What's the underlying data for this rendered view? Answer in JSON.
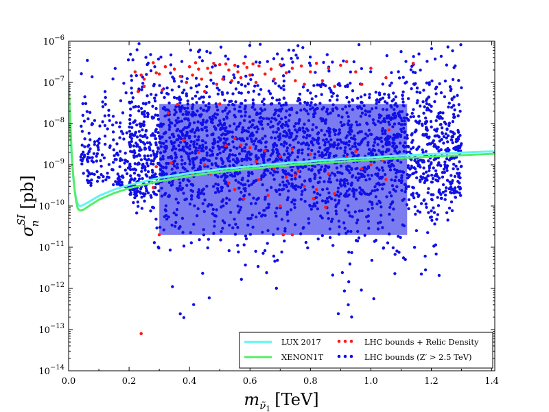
{
  "chart_data": {
    "type": "scatter",
    "title": "",
    "xlabel": {
      "prefix": "m",
      "subscript": "ν̃",
      "subsubscript": "1",
      "unit": "[TeV]"
    },
    "ylabel": {
      "base": "σ",
      "superscript": "SI",
      "subscript": "n",
      "unit": "[pb]"
    },
    "xscale": "linear",
    "yscale": "log",
    "xlim": [
      0.0,
      1.41
    ],
    "ylim": [
      1e-14,
      1e-06
    ],
    "xticks": [
      {
        "value": 0.0,
        "label": "0.0"
      },
      {
        "value": 0.2,
        "label": "0.2"
      },
      {
        "value": 0.4,
        "label": "0.4"
      },
      {
        "value": 0.6,
        "label": "0.6"
      },
      {
        "value": 0.8,
        "label": "0.8"
      },
      {
        "value": 1.0,
        "label": "1.0"
      },
      {
        "value": 1.2,
        "label": "1.2"
      },
      {
        "value": 1.4,
        "label": "1.4"
      }
    ],
    "yticks": [
      {
        "exp": -14,
        "base": "10",
        "sup": "−14"
      },
      {
        "exp": -13,
        "base": "10",
        "sup": "−13"
      },
      {
        "exp": -12,
        "base": "10",
        "sup": "−12"
      },
      {
        "exp": -11,
        "base": "10",
        "sup": "−11"
      },
      {
        "exp": -10,
        "base": "10",
        "sup": "−10"
      },
      {
        "exp": -9,
        "base": "10",
        "sup": "−9"
      },
      {
        "exp": -8,
        "base": "10",
        "sup": "−8"
      },
      {
        "exp": -7,
        "base": "10",
        "sup": "−7"
      },
      {
        "exp": -6,
        "base": "10",
        "sup": "−6"
      }
    ],
    "grid": false,
    "legend_position": "bottom-right",
    "series": [
      {
        "name": "LUX 2017",
        "kind": "line",
        "color": "#5ff5f2",
        "points": [
          [
            0.0,
            5e-08
          ],
          [
            0.005,
            8e-09
          ],
          [
            0.01,
            1.5e-09
          ],
          [
            0.015,
            5e-10
          ],
          [
            0.02,
            2.4e-10
          ],
          [
            0.025,
            1.5e-10
          ],
          [
            0.03,
            1.15e-10
          ],
          [
            0.035,
            1.02e-10
          ],
          [
            0.04,
            1e-10
          ],
          [
            0.05,
            1.07e-10
          ],
          [
            0.07,
            1.3e-10
          ],
          [
            0.1,
            1.75e-10
          ],
          [
            0.15,
            2.5e-10
          ],
          [
            0.2,
            3.25e-10
          ],
          [
            0.3,
            4.8e-10
          ],
          [
            0.4,
            6.3e-10
          ],
          [
            0.5,
            7.8e-10
          ],
          [
            0.6,
            9.2e-10
          ],
          [
            0.7,
            1.07e-09
          ],
          [
            0.8,
            1.22e-09
          ],
          [
            0.9,
            1.37e-09
          ],
          [
            1.0,
            1.52e-09
          ],
          [
            1.1,
            1.67e-09
          ],
          [
            1.2,
            1.82e-09
          ],
          [
            1.3,
            1.97e-09
          ],
          [
            1.41,
            2.12e-09
          ]
        ]
      },
      {
        "name": "XENON1T",
        "kind": "line",
        "color": "#55ee66",
        "points": [
          [
            0.0,
            1e-07
          ],
          [
            0.005,
            1.5e-08
          ],
          [
            0.01,
            2e-09
          ],
          [
            0.015,
            6e-10
          ],
          [
            0.02,
            2.4e-10
          ],
          [
            0.025,
            1.3e-10
          ],
          [
            0.03,
            8.8e-11
          ],
          [
            0.035,
            8e-11
          ],
          [
            0.04,
            7.8e-11
          ],
          [
            0.05,
            8.2e-11
          ],
          [
            0.07,
            1.03e-10
          ],
          [
            0.1,
            1.42e-10
          ],
          [
            0.15,
            2.05e-10
          ],
          [
            0.2,
            2.7e-10
          ],
          [
            0.3,
            4e-10
          ],
          [
            0.4,
            5.4e-10
          ],
          [
            0.5,
            6.7e-10
          ],
          [
            0.6,
            8e-10
          ],
          [
            0.7,
            9.3e-10
          ],
          [
            0.8,
            1.06e-09
          ],
          [
            0.9,
            1.19e-09
          ],
          [
            1.0,
            1.32e-09
          ],
          [
            1.1,
            1.45e-09
          ],
          [
            1.2,
            1.58e-09
          ],
          [
            1.3,
            1.71e-09
          ],
          [
            1.41,
            1.85e-09
          ]
        ]
      },
      {
        "name": "LHC bounds + Relic Density",
        "kind": "scatter",
        "color": "#ff1a1a",
        "points": [
          [
            0.22,
            1.8e-07
          ],
          [
            0.24,
            1.5e-07
          ],
          [
            0.25,
            8e-08
          ],
          [
            0.25,
            1.2e-07
          ],
          [
            0.23,
            6e-08
          ],
          [
            0.28,
            3e-07
          ],
          [
            0.29,
            1.7e-07
          ],
          [
            0.3,
            1.6e-07
          ],
          [
            0.32,
            2.4e-07
          ],
          [
            0.35,
            2.1e-07
          ],
          [
            0.37,
            1.4e-07
          ],
          [
            0.39,
            1e-07
          ],
          [
            0.4,
            2.4e-07
          ],
          [
            0.41,
            1.5e-07
          ],
          [
            0.42,
            3e-07
          ],
          [
            0.43,
            2.1e-07
          ],
          [
            0.44,
            1.2e-07
          ],
          [
            0.45,
            6e-08
          ],
          [
            0.46,
            2.2e-07
          ],
          [
            0.47,
            1.7e-07
          ],
          [
            0.48,
            2.9e-07
          ],
          [
            0.49,
            9e-08
          ],
          [
            0.5,
            2.7e-07
          ],
          [
            0.51,
            1.2e-07
          ],
          [
            0.52,
            2.8e-07
          ],
          [
            0.53,
            2e-07
          ],
          [
            0.54,
            1.1e-07
          ],
          [
            0.55,
            2.6e-07
          ],
          [
            0.56,
            1.8e-07
          ],
          [
            0.57,
            1.3e-07
          ],
          [
            0.58,
            2.9e-07
          ],
          [
            0.59,
            2.3e-07
          ],
          [
            0.6,
            1.5e-07
          ],
          [
            0.61,
            2.8e-07
          ],
          [
            0.62,
            1e-07
          ],
          [
            0.63,
            2.5e-07
          ],
          [
            0.65,
            1.6e-07
          ],
          [
            0.67,
            2.1e-07
          ],
          [
            0.68,
            1.2e-07
          ],
          [
            0.7,
            2.7e-07
          ],
          [
            0.72,
            1.7e-07
          ],
          [
            0.74,
            2.2e-07
          ],
          [
            0.75,
            1.1e-07
          ],
          [
            0.77,
            2.5e-07
          ],
          [
            0.78,
            9e-08
          ],
          [
            0.8,
            1.8e-07
          ],
          [
            0.82,
            2.9e-07
          ],
          [
            0.84,
            1.1e-07
          ],
          [
            0.86,
            2.2e-07
          ],
          [
            0.88,
            8e-08
          ],
          [
            0.9,
            2.6e-07
          ],
          [
            0.92,
            3.2e-07
          ],
          [
            0.95,
            1.8e-07
          ],
          [
            0.97,
            9e-08
          ],
          [
            1.0,
            2.2e-07
          ],
          [
            1.05,
            1.3e-07
          ],
          [
            1.14,
            2.9e-07
          ],
          [
            0.31,
            6.5e-08
          ],
          [
            0.33,
            1.8e-08
          ],
          [
            0.38,
            4e-09
          ],
          [
            0.52,
            2.9e-09
          ],
          [
            0.57,
            3e-09
          ],
          [
            0.36,
            2.9e-08
          ],
          [
            0.5,
            3e-08
          ],
          [
            0.55,
            4.4e-09
          ],
          [
            0.6,
            2.6e-09
          ],
          [
            0.62,
            1.2e-09
          ],
          [
            0.65,
            2.2e-09
          ],
          [
            0.68,
            8e-10
          ],
          [
            0.7,
            1.6e-09
          ],
          [
            0.72,
            5e-10
          ],
          [
            0.74,
            2.4e-09
          ],
          [
            0.76,
            7e-10
          ],
          [
            0.78,
            3e-10
          ],
          [
            0.8,
            1.8e-09
          ],
          [
            0.82,
            2.5e-10
          ],
          [
            0.84,
            1.2e-09
          ],
          [
            0.86,
            6e-10
          ],
          [
            0.88,
            2e-10
          ],
          [
            0.92,
            1.5e-09
          ],
          [
            0.95,
            2.1e-09
          ],
          [
            1.0,
            1e-09
          ],
          [
            1.04,
            1.3e-09
          ],
          [
            1.06,
            7e-09
          ],
          [
            0.43,
            2e-09
          ],
          [
            0.45,
            1e-09
          ],
          [
            0.47,
            6e-10
          ],
          [
            0.53,
            3.6e-10
          ],
          [
            0.55,
            2.5e-10
          ],
          [
            0.58,
            1.5e-10
          ],
          [
            0.63,
            4.4e-10
          ],
          [
            0.66,
            1.8e-10
          ],
          [
            0.7,
            1e-10
          ],
          [
            0.75,
            5.5e-10
          ],
          [
            0.81,
            1.5e-10
          ],
          [
            0.71,
            2e-11
          ],
          [
            0.74,
            2e-11
          ],
          [
            0.3,
            2e-11
          ],
          [
            0.29,
            9e-10
          ],
          [
            0.28,
            2.8e-10
          ],
          [
            0.34,
            1.1e-09
          ],
          [
            0.41,
            6e-10
          ],
          [
            0.97,
            8e-10
          ],
          [
            1.05,
            4.4e-10
          ],
          [
            1.2,
            1.6e-09
          ],
          [
            0.85,
            9.3e-11
          ],
          [
            0.24,
            8e-14
          ]
        ]
      },
      {
        "name": "LHC bounds (Z′ > 2.5 TeV)",
        "kind": "scatter",
        "color": "#1010e6"
      }
    ],
    "legend": {
      "entries": [
        {
          "label": "LUX 2017",
          "color": "#5ff5f2",
          "kind": "line"
        },
        {
          "label": "XENON1T",
          "color": "#55ee66",
          "kind": "line"
        },
        {
          "label": "LHC bounds + Relic Density",
          "color": "#ff1a1a",
          "kind": "scatter"
        },
        {
          "label": "LHC bounds (Z′ > 2.5 TeV)",
          "color": "#1010e6",
          "kind": "scatter"
        }
      ]
    }
  }
}
